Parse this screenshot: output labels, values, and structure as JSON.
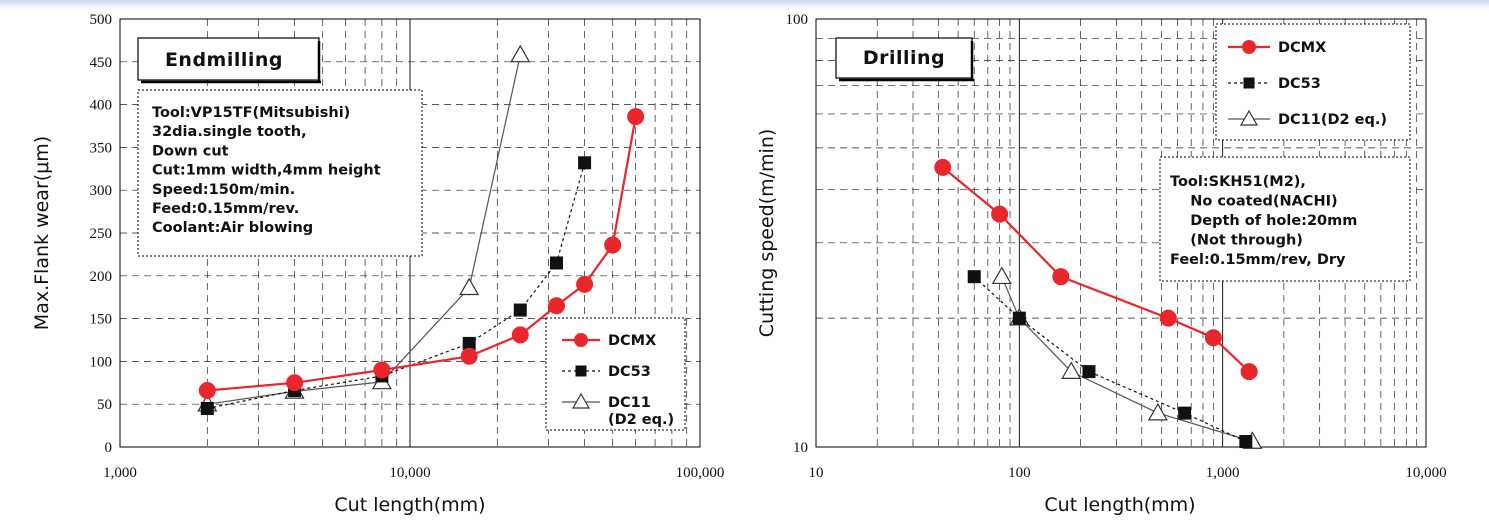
{
  "chart_data": [
    {
      "type": "line",
      "title": "Endmilling",
      "xlabel": "Cut length(mm)",
      "ylabel": "Max.Flank wear(μm)",
      "xscale": "log",
      "xlim": [
        1000,
        100000
      ],
      "ylim": [
        0,
        500
      ],
      "xticks": [
        "1,000",
        "10,000",
        "100,000"
      ],
      "yticks": [
        "0",
        "50",
        "100",
        "150",
        "200",
        "250",
        "300",
        "350",
        "400",
        "450",
        "500"
      ],
      "grid": true,
      "legend_position": "bottom-right",
      "notes": [
        "Tool:VP15TF(Mitsubishi)",
        "32dia.single tooth,",
        "Down cut",
        "Cut:1mm width,4mm height",
        "Speed:150m/min.",
        "Feed:0.15mm/rev.",
        "Coolant:Air blowing"
      ],
      "series": [
        {
          "name": "DCMX",
          "color": "#e8262b",
          "marker": "circle",
          "dash": "solid",
          "points": [
            [
              2000,
              66
            ],
            [
              4000,
              75
            ],
            [
              8000,
              90
            ],
            [
              16000,
              106
            ],
            [
              24000,
              131
            ],
            [
              32000,
              165
            ],
            [
              40000,
              190
            ],
            [
              50000,
              236
            ],
            [
              60000,
              386
            ]
          ]
        },
        {
          "name": "DC53",
          "color": "#111111",
          "marker": "square",
          "dash": "dotted",
          "points": [
            [
              2000,
              45
            ],
            [
              4000,
              66
            ],
            [
              8000,
              83
            ],
            [
              16000,
              121
            ],
            [
              24000,
              160
            ],
            [
              32000,
              215
            ],
            [
              40000,
              332
            ]
          ]
        },
        {
          "name": "DC11",
          "name_line2": "(D2 eq.)",
          "color": "#555555",
          "marker": "triangle",
          "dash": "solid",
          "points": [
            [
              2000,
              50
            ],
            [
              4000,
              65
            ],
            [
              8000,
              76
            ],
            [
              16000,
              186
            ],
            [
              24000,
              458
            ]
          ]
        }
      ]
    },
    {
      "type": "line",
      "title": "Drilling",
      "xlabel": "Cut length(mm)",
      "ylabel": "Cutting speed(m/min)",
      "xscale": "log",
      "yscale": "log",
      "xlim": [
        10,
        10000
      ],
      "ylim": [
        10,
        100
      ],
      "xticks": [
        "10",
        "100",
        "1,000",
        "10,000"
      ],
      "yticks": [
        "10",
        "100"
      ],
      "grid": true,
      "legend_position": "top-right",
      "notes": [
        "Tool:SKH51(M2),",
        "    No coated(NACHI)",
        "    Depth of hole:20mm",
        "    (Not through)",
        "Feel:0.15mm/rev, Dry"
      ],
      "series": [
        {
          "name": "DCMX",
          "color": "#e8262b",
          "marker": "circle",
          "dash": "solid",
          "points": [
            [
              42,
              45
            ],
            [
              80,
              35
            ],
            [
              160,
              25
            ],
            [
              540,
              20
            ],
            [
              900,
              18
            ],
            [
              1350,
              15
            ]
          ]
        },
        {
          "name": "DC53",
          "color": "#111111",
          "marker": "square",
          "dash": "dotted",
          "points": [
            [
              60,
              25
            ],
            [
              100,
              20
            ],
            [
              220,
              15
            ],
            [
              650,
              12
            ],
            [
              1300,
              10.3
            ]
          ]
        },
        {
          "name": "DC11(D2 eq.)",
          "color": "#555555",
          "marker": "triangle",
          "dash": "solid",
          "points": [
            [
              82,
              25
            ],
            [
              100,
              20
            ],
            [
              180,
              15
            ],
            [
              480,
              12
            ],
            [
              1400,
              10.3
            ]
          ]
        }
      ]
    }
  ]
}
